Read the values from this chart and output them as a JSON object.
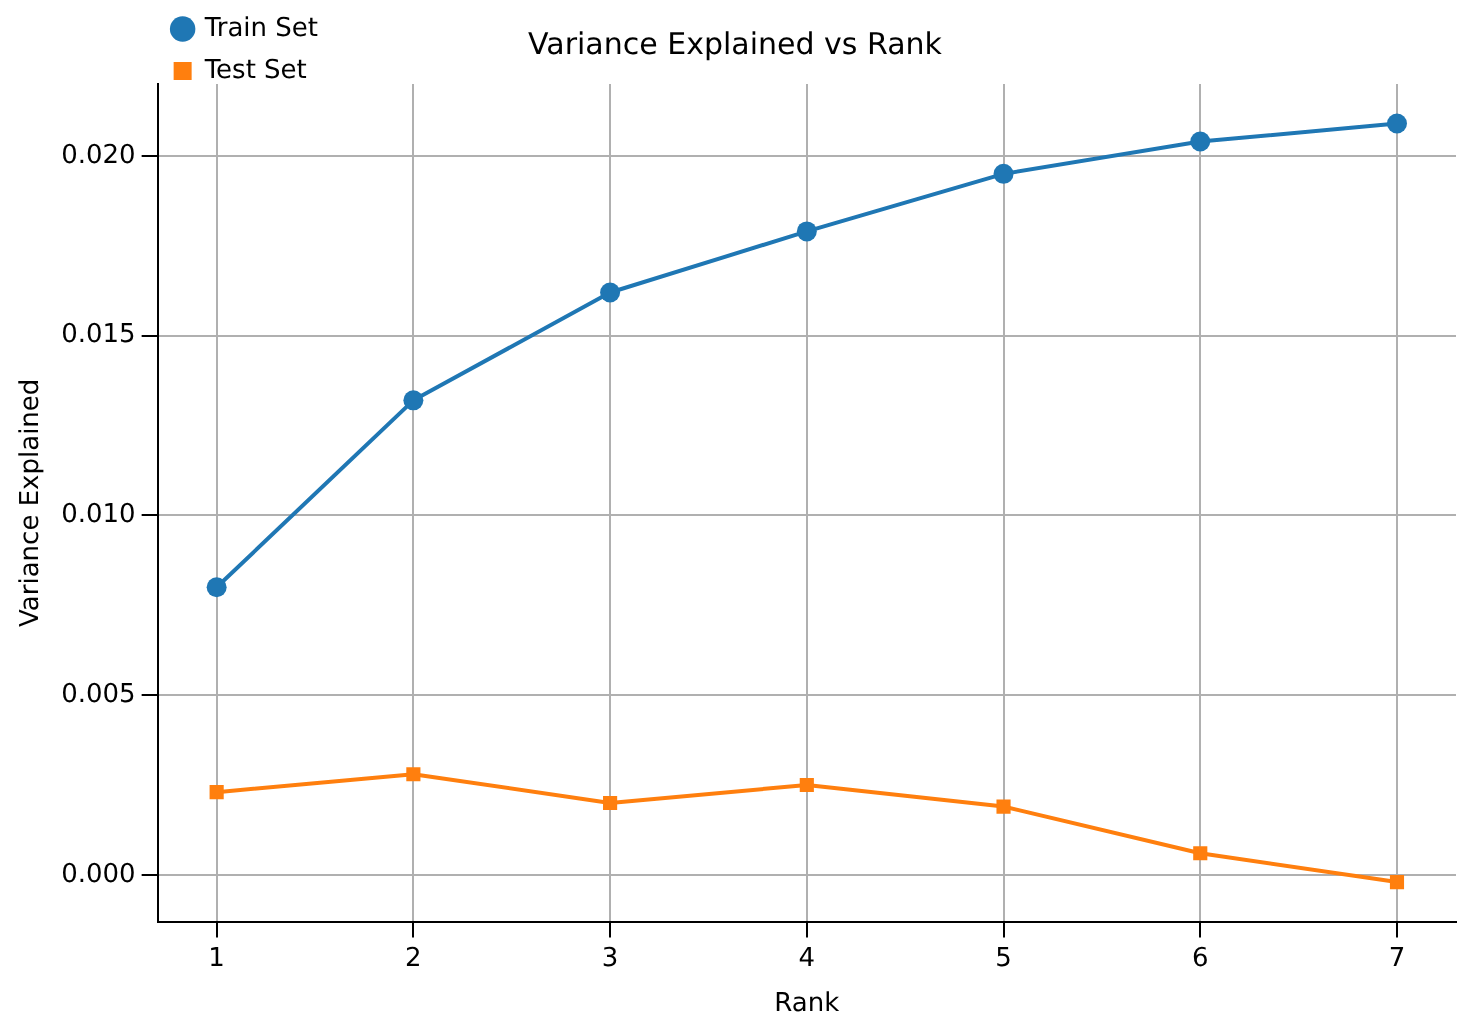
{
  "chart_data": {
    "type": "line",
    "title": "Variance Explained vs Rank",
    "xlabel": "Rank",
    "ylabel": "Variance Explained",
    "x": [
      1,
      2,
      3,
      4,
      5,
      6,
      7
    ],
    "series": [
      {
        "name": "Train Set",
        "color": "#1f77b4",
        "marker": "circle",
        "values": [
          0.008,
          0.0132,
          0.0162,
          0.0179,
          0.0195,
          0.0204,
          0.0209
        ]
      },
      {
        "name": "Test Set",
        "color": "#ff7f0e",
        "marker": "square",
        "values": [
          0.0023,
          0.0028,
          0.002,
          0.0025,
          0.0019,
          0.0006,
          -0.0002
        ]
      }
    ],
    "xlim": [
      0.7,
      7.3
    ],
    "xticks": [
      1,
      2,
      3,
      4,
      5,
      6,
      7
    ],
    "ylim": [
      -0.0013,
      0.022
    ],
    "yticks": [
      {
        "value": 0,
        "label": "0.000"
      },
      {
        "value": 0.005,
        "label": "0.005"
      },
      {
        "value": 0.01,
        "label": "0.010"
      },
      {
        "value": 0.015,
        "label": "0.015"
      },
      {
        "value": 0.02,
        "label": "0.020"
      }
    ],
    "grid": true,
    "legend": "top left",
    "line_style": "solid"
  }
}
